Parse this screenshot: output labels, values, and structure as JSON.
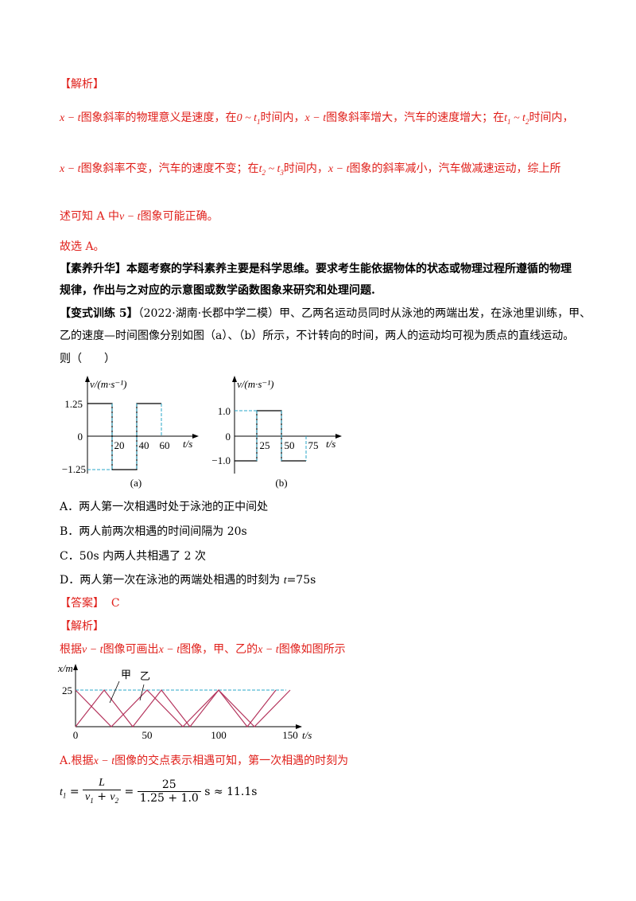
{
  "analysis1": {
    "header": "【解析】",
    "line1": {
      "xt1": "x − t",
      "p1": "图象斜率的物理意义是速度，在",
      "zero": "0 ~ t",
      "zero_sub": "1",
      "p2": "时间内，",
      "xt2": "x − t",
      "p3": "图象斜率增大，汽车的速度增大；在",
      "t1": "t",
      "t1_sub": "1",
      "tilde": " ~ t",
      "t2_sub": "2",
      "p4": "时间内，"
    },
    "line2": {
      "xt1": "x − t",
      "p1": "图象斜率不变，汽车的速度不变；在",
      "t2": "t",
      "t2_sub": "2",
      "tilde": " ~ t",
      "t3_sub": "3",
      "p2": "时间内，",
      "xt2": "x − t",
      "p3": "图象的斜率减小，汽车做减速运动，综上所"
    },
    "line3": {
      "p1": "述可知 A 中",
      "vt": "v − t",
      "p2": "图象可能正确。"
    }
  },
  "choice_line": "故选 A。",
  "literacy": {
    "title": "【素养升华】",
    "line1": "本题考察的学科素养主要是科学思维。要求考生能依据物体的状态或物理过程所遵循的物理",
    "line2": "规律，作出与之对应的示意图或数学函数图象来研究和处理问题."
  },
  "exercise": {
    "title": "【变式训练 5】",
    "line1": "（2022·湖南·长郡中学二模）甲、乙两名运动员同时从泳池的两端出发，在泳池里训练，甲、",
    "line2": "乙的速度—时间图像分别如图（a）、（b）所示，不计转向的时间，两人的运动均可视为质点的直线运动。",
    "line3": "则（　　）"
  },
  "graph_a": {
    "ylabel": "v/(m·s⁻¹)",
    "y_pos": "1.25",
    "y_zero": "0",
    "y_neg": "−1.25",
    "xticks": [
      "20",
      "40",
      "60"
    ],
    "xlabel": "t/s",
    "caption": "(a)"
  },
  "graph_b": {
    "ylabel": "v/(m·s⁻¹)",
    "y_pos": "1.0",
    "y_zero": "0",
    "y_neg": "−1.0",
    "xticks": [
      "25",
      "50",
      "75"
    ],
    "xlabel": "t/s",
    "caption": "(b)"
  },
  "options": {
    "a": "A．两人第一次相遇时处于泳池的正中间处",
    "b": "B．两人前两次相遇的时间间隔为 20s",
    "c": "C．50s 内两人共相遇了 2 次",
    "d_pre": "D．两人第一次在泳池的两端处相遇的时刻为 ",
    "d_t": "t",
    "d_post": "=75s"
  },
  "answer": {
    "label": "【答案】",
    "value": "C"
  },
  "analysis2": {
    "header": "【解析】",
    "line1": {
      "p1": "根据",
      "vt": "v − t",
      "p2": "图像可画出",
      "xt1": "x − t",
      "p3": "图像，甲、乙的",
      "xt2": "x − t",
      "p4": "图像如图所示"
    }
  },
  "graph_c": {
    "ylabel": "x/m",
    "y25": "25",
    "xticks": [
      "0",
      "50",
      "100",
      "150"
    ],
    "xlabel": "t/s",
    "label_jia": "甲",
    "label_yi": "乙"
  },
  "solution": {
    "p1": "A.根据",
    "xt": "x − t",
    "p2": "图像的交点表示相遇可知，第一次相遇的时刻为"
  },
  "formula": {
    "lhs": "t",
    "lhs_sub": "1",
    "eq1": " = ",
    "num1": "L",
    "den1_v1": "v",
    "den1_v1_sub": "1",
    "den1_plus": " + ",
    "den1_v2": "v",
    "den1_v2_sub": "2",
    "eq2": " = ",
    "num2": "25",
    "den2": "1.25 + 1.0",
    "result": " s ≈ 11.1s"
  },
  "colors": {
    "red": "#e0201b",
    "dashed": "#2aa7c9",
    "xt_lines": "#b5365e"
  }
}
